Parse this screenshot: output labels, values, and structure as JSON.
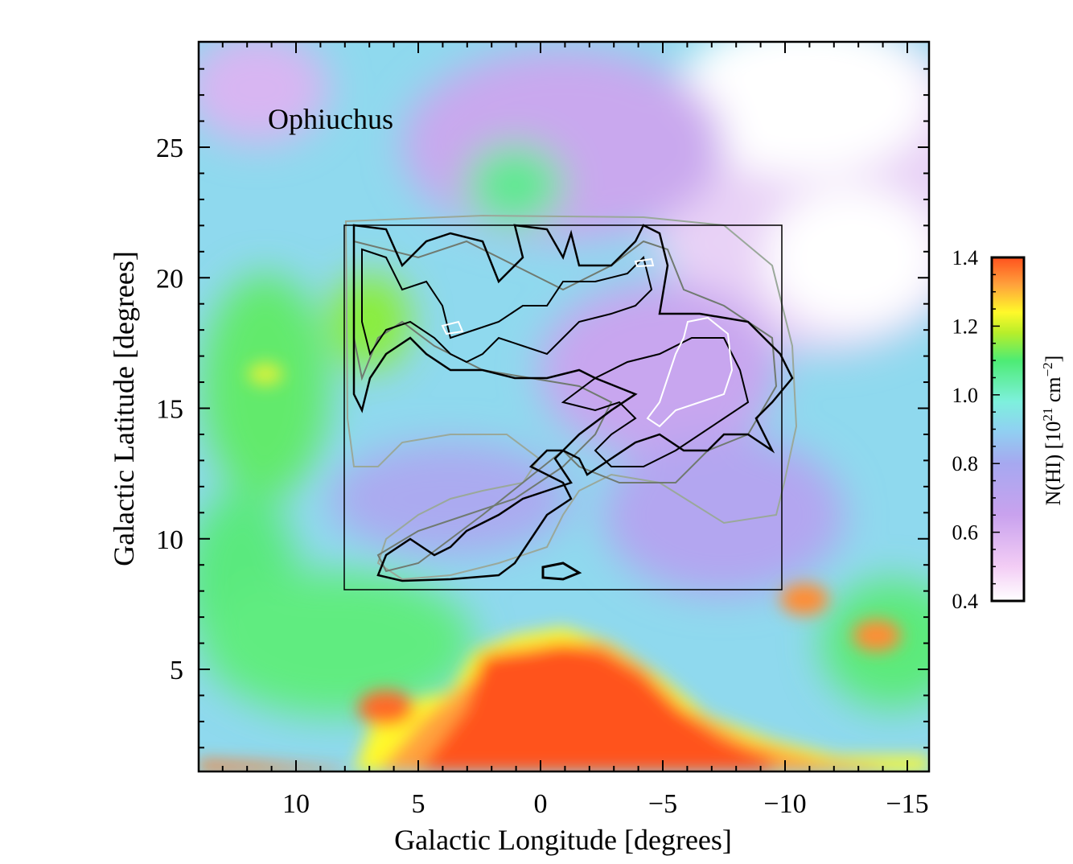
{
  "chart_data": [
    {
      "type": "heatmap",
      "title": "",
      "annotation": "Ophiuchus",
      "xlabel": "Galactic Longitude [degrees]",
      "ylabel": "Galactic Latitude [degrees]",
      "x_reversed": true,
      "xlim": [
        15,
        -16
      ],
      "ylim": [
        1,
        29
      ],
      "xticks": [
        10,
        5,
        0,
        -5,
        -10,
        -15
      ],
      "xtick_labels": [
        "10",
        "5",
        "0",
        "−5",
        "−10",
        "−15"
      ],
      "yticks": [
        5,
        10,
        15,
        20,
        25
      ],
      "ytick_labels": [
        "5",
        "10",
        "15",
        "20",
        "25"
      ],
      "grid": false,
      "overlay_box": {
        "l_range": [
          8,
          -10
        ],
        "b_range": [
          8,
          22
        ]
      },
      "overlay_contours": [
        "black",
        "gray",
        "white"
      ],
      "colorbar": {
        "label_parts": {
          "prefix": "N(HI) [10",
          "exp1": "21",
          "mid": " cm",
          "exp2": "−2",
          "suffix": "]"
        },
        "range": [
          0.4,
          1.4
        ],
        "ticks": [
          "1.4",
          "1.2",
          "1.0",
          "0.8",
          "0.6",
          "0.4"
        ],
        "colors": [
          "#ffffff",
          "#f3cdf5",
          "#c9a2ee",
          "#a6a8f0",
          "#8fd2f1",
          "#7ef0dd",
          "#4dec74",
          "#b7ee2a",
          "#fff92a",
          "#ffa23c",
          "#ff521e"
        ]
      }
    }
  ]
}
